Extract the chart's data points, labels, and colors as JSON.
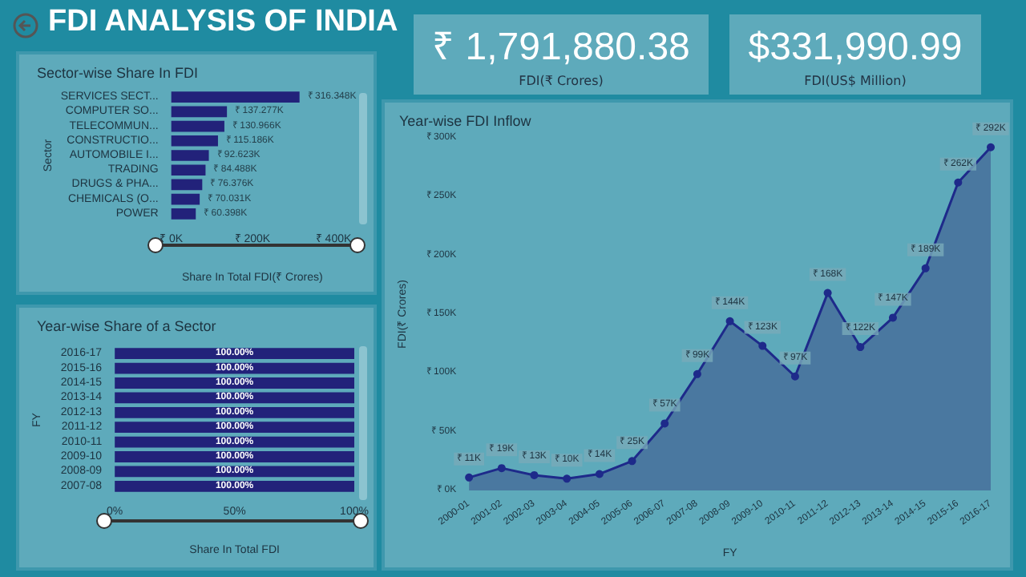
{
  "chart_data": [
    {
      "type": "other",
      "title": "FDI ANALYSIS OF INDIA",
      "categories": [
        "FDI(₹ Crores)",
        "FDI(US$ Million)"
      ],
      "values": [
        1791880.38,
        331990.99
      ],
      "value_labels": [
        "₹ 1,791,880.38",
        "$331,990.99"
      ]
    },
    {
      "type": "bar",
      "orientation": "horizontal",
      "title": "Sector-wise Share In FDI",
      "ylabel": "Sector",
      "xlabel": "Share In Total FDI(₹ Crores)",
      "categories": [
        "SERVICES SECT...",
        "COMPUTER SO...",
        "TELECOMMUN...",
        "CONSTRUCTIO...",
        "AUTOMOBILE I...",
        "TRADING",
        "DRUGS & PHA...",
        "CHEMICALS (O...",
        "POWER"
      ],
      "values": [
        316348,
        137277,
        130966,
        115186,
        92623,
        84488,
        76376,
        70031,
        60398
      ],
      "value_labels": [
        "₹ 316.348K",
        "₹ 137.277K",
        "₹ 130.966K",
        "₹ 115.186K",
        "₹ 92.623K",
        "₹ 84.488K",
        "₹ 76.376K",
        "₹ 70.031K",
        "₹ 60.398K"
      ],
      "color": "#22227a",
      "xlim": [
        0,
        400000
      ],
      "xticks": [
        {
          "value": 0,
          "label": "₹ 0K"
        },
        {
          "value": 200000,
          "label": "₹ 200K"
        },
        {
          "value": 400000,
          "label": "₹ 400K"
        }
      ],
      "grid": false
    },
    {
      "type": "bar",
      "orientation": "horizontal",
      "title": "Year-wise Share of a Sector",
      "ylabel": "FY",
      "xlabel": "Share In Total FDI",
      "categories": [
        "2016-17",
        "2015-16",
        "2014-15",
        "2013-14",
        "2012-13",
        "2011-12",
        "2010-11",
        "2009-10",
        "2008-09",
        "2007-08"
      ],
      "values": [
        100,
        100,
        100,
        100,
        100,
        100,
        100,
        100,
        100,
        100
      ],
      "value_labels": [
        "100.00%",
        "100.00%",
        "100.00%",
        "100.00%",
        "100.00%",
        "100.00%",
        "100.00%",
        "100.00%",
        "100.00%",
        "100.00%"
      ],
      "color": "#22227a",
      "xlim": [
        0,
        100
      ],
      "xticks": [
        {
          "value": 0,
          "label": "0%"
        },
        {
          "value": 50,
          "label": "50%"
        },
        {
          "value": 100,
          "label": "100%"
        }
      ],
      "grid": false
    },
    {
      "type": "area",
      "title": "Year-wise FDI Inflow",
      "xlabel": "FY",
      "ylabel": "FDI(₹ Crores)",
      "categories": [
        "2000-01",
        "2001-02",
        "2002-03",
        "2003-04",
        "2004-05",
        "2005-06",
        "2006-07",
        "2007-08",
        "2008-09",
        "2009-10",
        "2010-11",
        "2011-12",
        "2012-13",
        "2013-14",
        "2014-15",
        "2015-16",
        "2016-17"
      ],
      "series": [
        {
          "color": "#1e2a8a",
          "values": [
            11000,
            19000,
            13000,
            10000,
            14000,
            25000,
            57000,
            99000,
            144000,
            123000,
            97000,
            168000,
            122000,
            147000,
            189000,
            262000,
            292000
          ],
          "value_labels": [
            "₹ 11K",
            "₹ 19K",
            "₹ 13K",
            "₹ 10K",
            "₹ 14K",
            "₹ 25K",
            "₹ 57K",
            "₹ 99K",
            "₹ 144K",
            "₹ 123K",
            "₹ 97K",
            "₹ 168K",
            "₹ 122K",
            "₹ 147K",
            "₹ 189K",
            "₹ 262K",
            "₹ 292K"
          ]
        }
      ],
      "ylim": [
        0,
        300000
      ],
      "yticks": [
        {
          "value": 0,
          "label": "₹ 0K"
        },
        {
          "value": 50000,
          "label": "₹ 50K"
        },
        {
          "value": 100000,
          "label": "₹ 100K"
        },
        {
          "value": 150000,
          "label": "₹ 150K"
        },
        {
          "value": 200000,
          "label": "₹ 200K"
        },
        {
          "value": 250000,
          "label": "₹ 250K"
        },
        {
          "value": 300000,
          "label": "₹ 300K"
        }
      ],
      "grid": false,
      "marker": "circle",
      "line_style": "solid"
    }
  ]
}
